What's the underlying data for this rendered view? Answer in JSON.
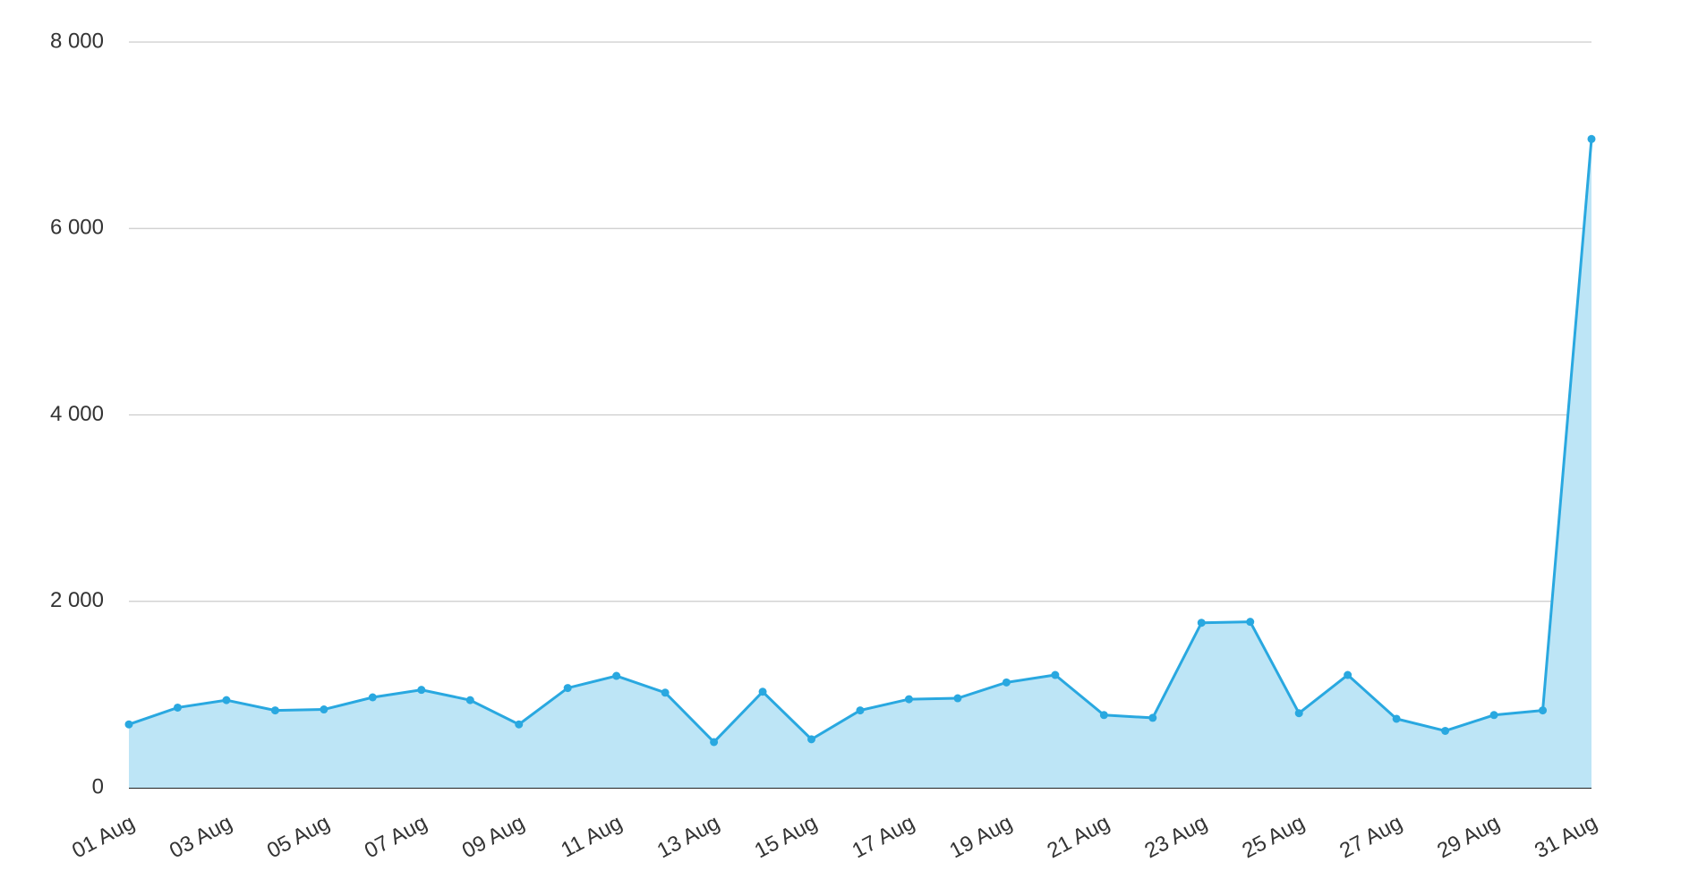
{
  "chart_data": {
    "type": "area",
    "categories": [
      "01 Aug",
      null,
      "03 Aug",
      null,
      "05 Aug",
      null,
      "07 Aug",
      null,
      "09 Aug",
      null,
      "11 Aug",
      null,
      "13 Aug",
      null,
      "15 Aug",
      null,
      "17 Aug",
      null,
      "19 Aug",
      null,
      "21 Aug",
      null,
      "23 Aug",
      null,
      "25 Aug",
      null,
      "27 Aug",
      null,
      "29 Aug",
      null,
      "31 Aug"
    ],
    "values": [
      680,
      860,
      940,
      830,
      840,
      970,
      1050,
      940,
      680,
      1070,
      1200,
      1020,
      490,
      1030,
      520,
      830,
      950,
      960,
      1130,
      1210,
      780,
      750,
      1770,
      1780,
      800,
      1210,
      740,
      610,
      780,
      830,
      6960
    ],
    "color": "#29a8e0",
    "fill_color": "#bde5f6",
    "ylim": [
      0,
      8000
    ],
    "yticks": [
      0,
      {
        "value": 2000,
        "label": "2 000"
      },
      {
        "value": 4000,
        "label": "4 000"
      },
      {
        "value": 6000,
        "label": "6 000"
      },
      {
        "value": 8000,
        "label": "8 000"
      }
    ],
    "grid": true
  }
}
